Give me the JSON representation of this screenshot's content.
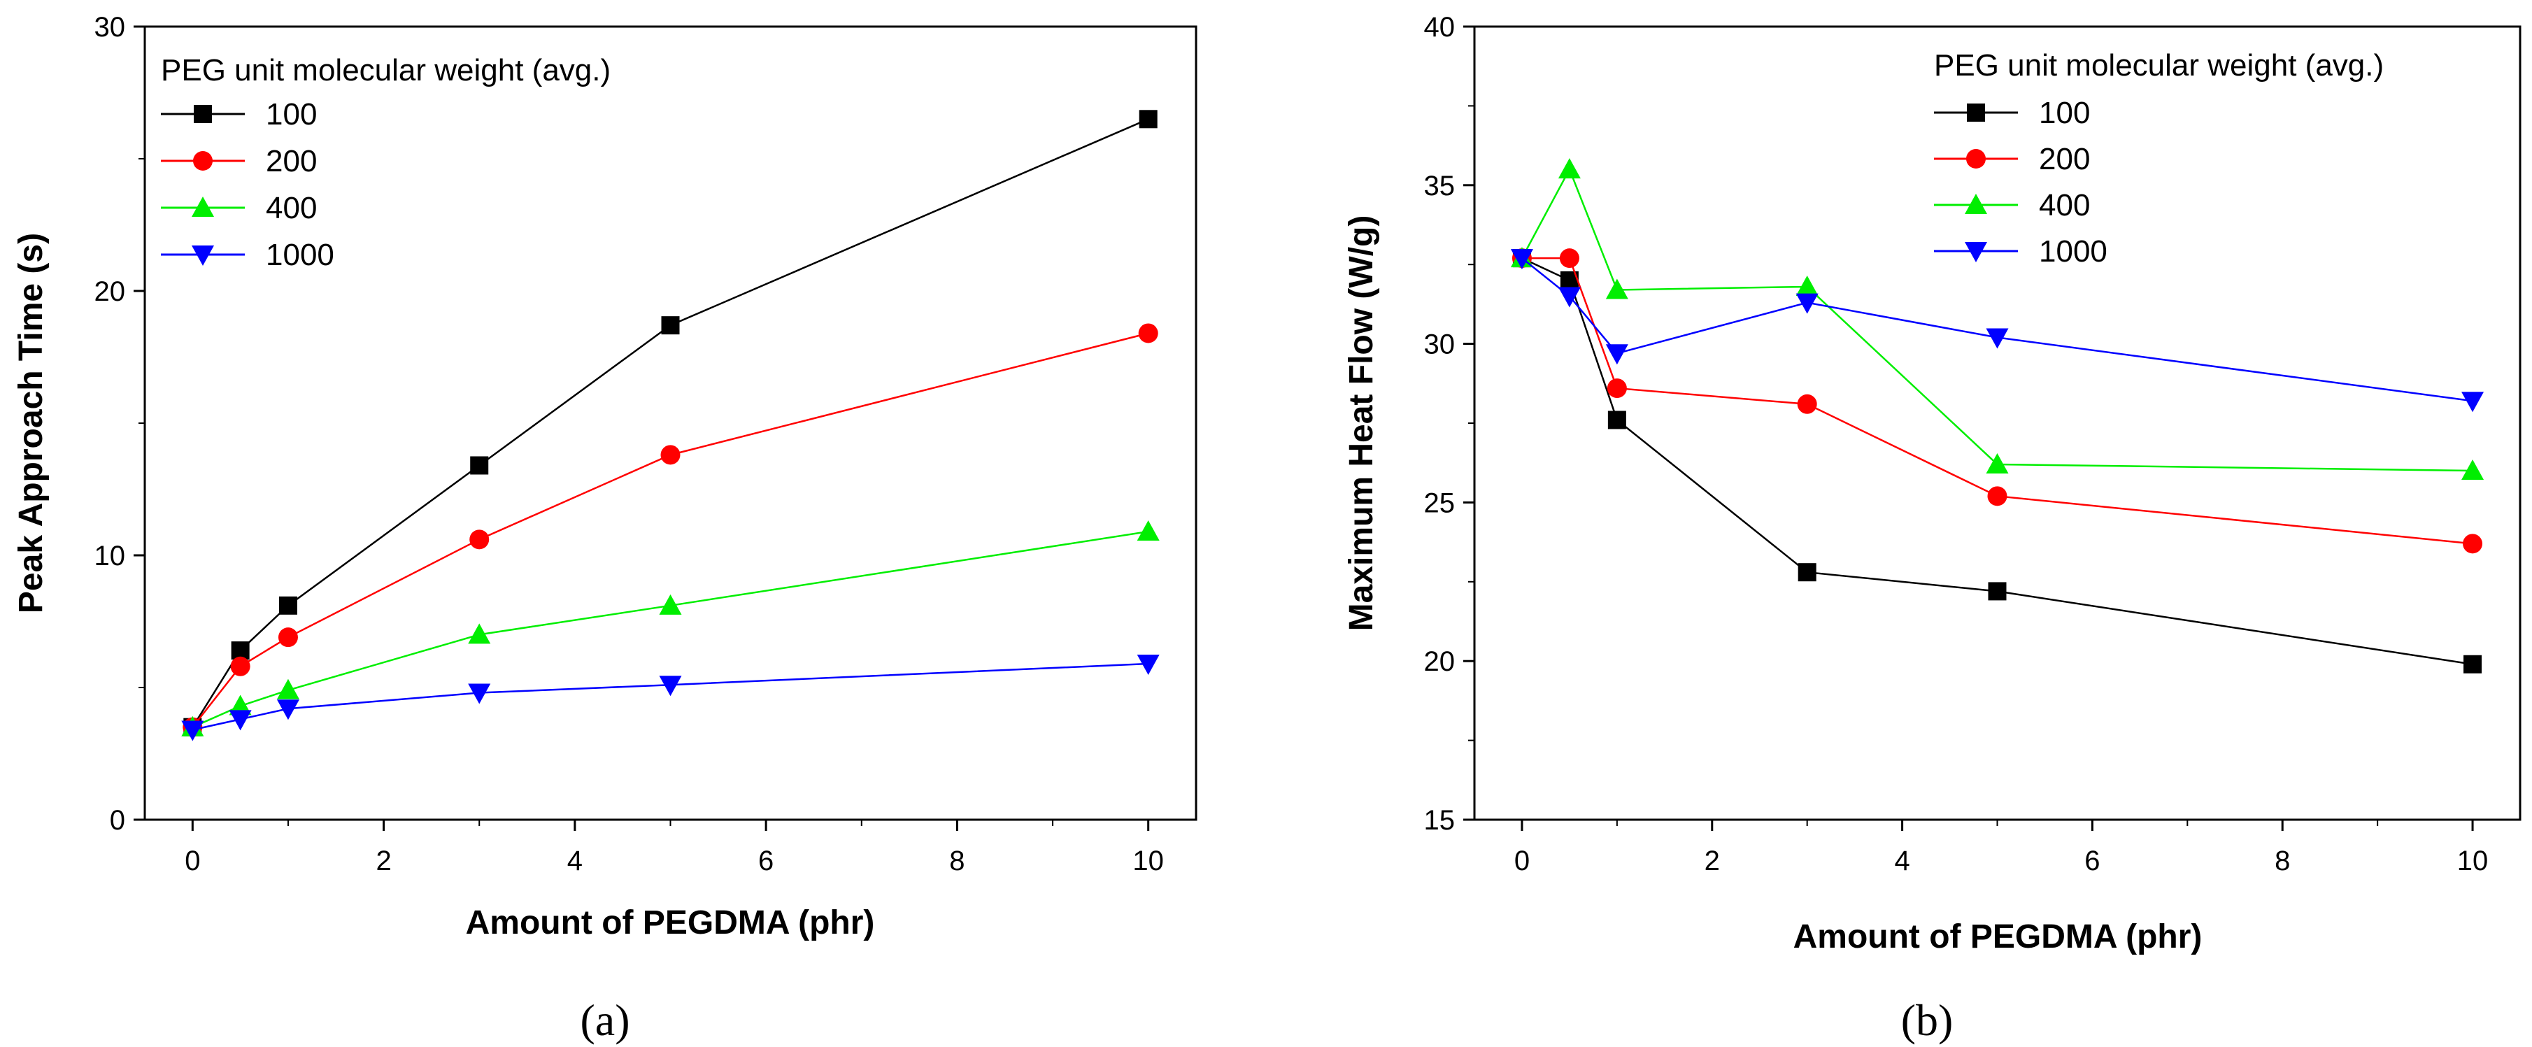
{
  "figure": {
    "panel_a_label": "(a)",
    "panel_b_label": "(b)"
  },
  "chart_data": [
    {
      "type": "line",
      "panel": "a",
      "title": "",
      "xlabel": "Amount of PEGDMA (phr)",
      "ylabel": "Peak Approach Time (s)",
      "xlim": [
        -0.5,
        10.5
      ],
      "ylim": [
        0,
        30
      ],
      "xticks": [
        "0",
        "2",
        "4",
        "6",
        "8",
        "10"
      ],
      "yticks": [
        "0",
        "10",
        "20",
        "30"
      ],
      "grid": false,
      "legend_title": "PEG unit molecular weight (avg.)",
      "legend_position": "top-left",
      "x": [
        0,
        0.5,
        1,
        3,
        5,
        10
      ],
      "series": [
        {
          "name": "100",
          "color": "#000000",
          "marker": "square",
          "values": [
            3.5,
            6.4,
            8.1,
            13.4,
            18.7,
            26.5
          ]
        },
        {
          "name": "200",
          "color": "#ff0000",
          "marker": "circle",
          "values": [
            3.5,
            5.8,
            6.9,
            10.6,
            13.8,
            18.4
          ]
        },
        {
          "name": "400",
          "color": "#00ee00",
          "marker": "triangle-up",
          "values": [
            3.5,
            4.3,
            4.9,
            7.0,
            8.1,
            10.9
          ]
        },
        {
          "name": "1000",
          "color": "#0000ff",
          "marker": "triangle-down",
          "values": [
            3.4,
            3.8,
            4.2,
            4.8,
            5.1,
            5.9
          ]
        }
      ]
    },
    {
      "type": "line",
      "panel": "b",
      "title": "",
      "xlabel": "Amount of PEGDMA (phr)",
      "ylabel": "Maximum Heat Flow (W/g)",
      "xlim": [
        -0.5,
        10.5
      ],
      "ylim": [
        15,
        40
      ],
      "xticks": [
        "0",
        "2",
        "4",
        "6",
        "8",
        "10"
      ],
      "yticks": [
        "15",
        "20",
        "25",
        "30",
        "35",
        "40"
      ],
      "grid": false,
      "legend_title": "PEG unit molecular weight (avg.)",
      "legend_position": "top-right",
      "x": [
        0,
        0.5,
        1,
        3,
        5,
        10
      ],
      "series": [
        {
          "name": "100",
          "color": "#000000",
          "marker": "square",
          "values": [
            32.7,
            32.0,
            27.6,
            22.8,
            22.2,
            19.9
          ]
        },
        {
          "name": "200",
          "color": "#ff0000",
          "marker": "circle",
          "values": [
            32.7,
            32.7,
            28.6,
            28.1,
            25.2,
            23.7
          ]
        },
        {
          "name": "400",
          "color": "#00ee00",
          "marker": "triangle-up",
          "values": [
            32.7,
            35.5,
            31.7,
            31.8,
            26.2,
            26.0
          ]
        },
        {
          "name": "1000",
          "color": "#0000ff",
          "marker": "triangle-down",
          "values": [
            32.7,
            31.5,
            29.7,
            31.3,
            30.2,
            28.2
          ]
        }
      ]
    }
  ]
}
